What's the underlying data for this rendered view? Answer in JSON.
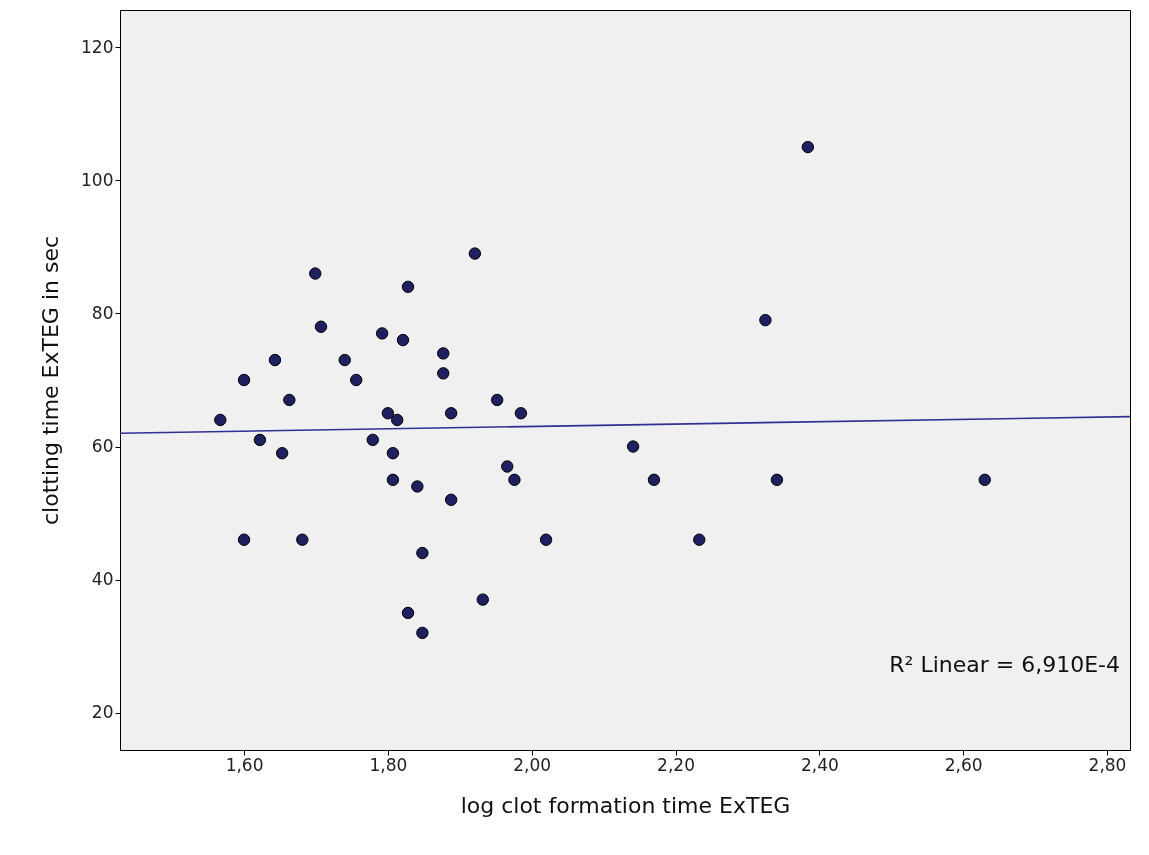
{
  "chart_data": {
    "type": "scatter",
    "xlabel": "log clot formation time ExTEG",
    "ylabel": "clotting time ExTEG in sec",
    "grid": false,
    "xlim": [
      1.4275,
      2.832
    ],
    "ylim": [
      14.4,
      125.6
    ],
    "xticks": [
      {
        "value": 1.6,
        "label": "1,60"
      },
      {
        "value": 1.8,
        "label": "1,80"
      },
      {
        "value": 2.0,
        "label": "2,00"
      },
      {
        "value": 2.2,
        "label": "2,20"
      },
      {
        "value": 2.4,
        "label": "2,40"
      },
      {
        "value": 2.6,
        "label": "2,60"
      },
      {
        "value": 2.8,
        "label": "2,80"
      }
    ],
    "yticks": [
      20,
      40,
      60,
      80,
      100,
      120
    ],
    "series": [
      {
        "color": "#1f2060",
        "x": [
          1.567,
          1.6,
          1.6,
          1.622,
          1.643,
          1.653,
          1.663,
          1.681,
          1.699,
          1.707,
          1.74,
          1.756,
          1.779,
          1.792,
          1.8,
          1.807,
          1.807,
          1.813,
          1.821,
          1.828,
          1.828,
          1.841,
          1.848,
          1.848,
          1.877,
          1.877,
          1.888,
          1.888,
          1.921,
          1.932,
          1.952,
          1.966,
          1.976,
          1.985,
          2.02,
          2.141,
          2.17,
          2.233,
          2.325,
          2.341,
          2.384,
          2.63
        ],
        "values": [
          64,
          70,
          46,
          61,
          73,
          59,
          67,
          46,
          86,
          78,
          73,
          70,
          61,
          77,
          65,
          59,
          55,
          64,
          76,
          84,
          35,
          54,
          44,
          32,
          74,
          71,
          65,
          52,
          89,
          37,
          67,
          57,
          55,
          65,
          46,
          60,
          55,
          46,
          79,
          55,
          105,
          55
        ]
      },
      {
        "type": "line",
        "color": "#2e3192",
        "x": [
          1.4275,
          2.832
        ],
        "values": [
          62.0,
          64.5
        ]
      }
    ],
    "annotations": [
      "R² Linear = 6,910E-4"
    ]
  }
}
